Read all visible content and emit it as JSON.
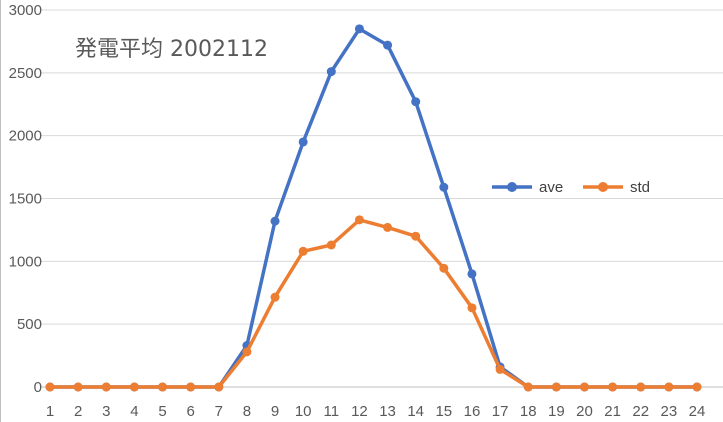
{
  "chart_data": {
    "type": "line",
    "title": "発電平均 2002112",
    "xlabel": "",
    "ylabel": "",
    "categories": [
      "1",
      "2",
      "3",
      "4",
      "5",
      "6",
      "7",
      "8",
      "9",
      "10",
      "11",
      "12",
      "13",
      "14",
      "15",
      "16",
      "17",
      "18",
      "19",
      "20",
      "21",
      "22",
      "23",
      "24"
    ],
    "ylim": [
      0,
      3000
    ],
    "yticks": [
      "0",
      "500",
      "1000",
      "1500",
      "2000",
      "2500",
      "3000"
    ],
    "grid": true,
    "legend_position": "right",
    "series": [
      {
        "name": "ave",
        "color": "#4472C4",
        "values": [
          0,
          0,
          0,
          0,
          0,
          0,
          0,
          330,
          1320,
          1950,
          2510,
          2850,
          2720,
          2270,
          1590,
          900,
          160,
          0,
          0,
          0,
          0,
          0,
          0,
          0
        ]
      },
      {
        "name": "std",
        "color": "#ED7D31",
        "values": [
          0,
          0,
          0,
          0,
          0,
          0,
          0,
          280,
          715,
          1080,
          1130,
          1330,
          1270,
          1200,
          945,
          630,
          140,
          0,
          0,
          0,
          0,
          0,
          0,
          0
        ]
      }
    ]
  }
}
